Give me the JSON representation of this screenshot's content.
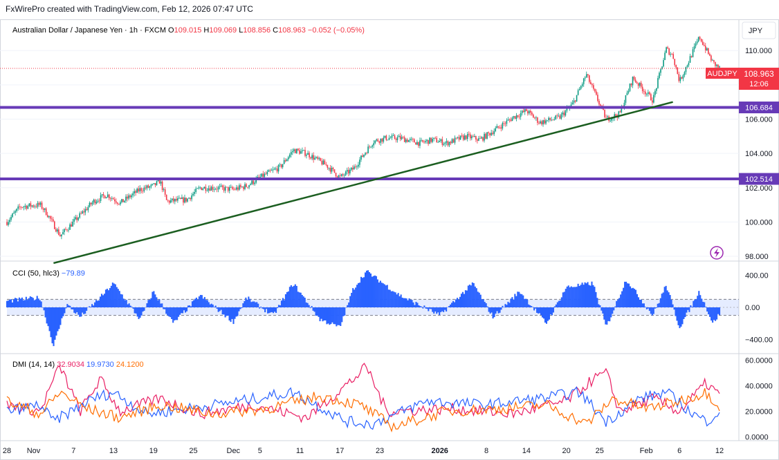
{
  "attribution": "FxWirePro created with TradingView.com, Feb 12, 2026 07:47 UTC",
  "colors": {
    "up": "#089981",
    "down": "#f23645",
    "level": "#673ab7",
    "trend": "#1b5e20",
    "cci": "#2962ff",
    "di_plus": "#2962ff",
    "di_minus": "#e91e63",
    "adx": "#ff6d00"
  },
  "chart_data": [
    {
      "type": "candlestick",
      "title": "Australian Dollar / Japanese Yen",
      "timeframe": "1h",
      "source": "FXCM",
      "ohlc": {
        "O": "109.015",
        "H": "109.069",
        "L": "108.856",
        "C": "108.963",
        "change": "−0.052 (−0.05%)"
      },
      "currency": "JPY",
      "symbol": "AUDJPY",
      "last_price": "108.963",
      "countdown": "12:06",
      "ylim": [
        97.8,
        111.5
      ],
      "y_ticks": [
        "110.000",
        "108.000",
        "106.000",
        "104.000",
        "102.000",
        "100.000",
        "98.000"
      ],
      "levels": [
        {
          "value": 106.684,
          "label": "106.684"
        },
        {
          "value": 102.514,
          "label": "102.514"
        }
      ],
      "trendline": {
        "start": {
          "date": "Nov 4",
          "value": 97.6
        },
        "end": {
          "date": "Feb 5",
          "value": 107.0
        }
      },
      "price_path": [
        [
          "Oct 28",
          100.0
        ],
        [
          "Oct 30",
          100.9
        ],
        [
          "Nov 2",
          101.0
        ],
        [
          "Nov 3",
          100.5
        ],
        [
          "Nov 5",
          99.2
        ],
        [
          "Nov 7",
          100.0
        ],
        [
          "Nov 10",
          101.2
        ],
        [
          "Nov 12",
          101.6
        ],
        [
          "Nov 14",
          101.1
        ],
        [
          "Nov 17",
          101.9
        ],
        [
          "Nov 19",
          102.1
        ],
        [
          "Nov 20",
          102.4
        ],
        [
          "Nov 21",
          101.2
        ],
        [
          "Nov 24",
          101.3
        ],
        [
          "Nov 26",
          102.0
        ],
        [
          "Nov 28",
          102.0
        ],
        [
          "Dec 1",
          101.9
        ],
        [
          "Dec 3",
          102.1
        ],
        [
          "Dec 5",
          102.6
        ],
        [
          "Dec 8",
          103.2
        ],
        [
          "Dec 10",
          104.2
        ],
        [
          "Dec 12",
          104.0
        ],
        [
          "Dec 15",
          103.3
        ],
        [
          "Dec 17",
          102.6
        ],
        [
          "Dec 19",
          103.1
        ],
        [
          "Dec 22",
          104.7
        ],
        [
          "Dec 24",
          104.9
        ],
        [
          "Dec 26",
          104.9
        ],
        [
          "Dec 29",
          104.6
        ],
        [
          "Dec 31",
          104.8
        ],
        [
          "Jan 2",
          104.6
        ],
        [
          "Jan 5",
          105.0
        ],
        [
          "Jan 7",
          104.8
        ],
        [
          "Jan 9",
          105.3
        ],
        [
          "Jan 12",
          106.1
        ],
        [
          "Jan 14",
          106.5
        ],
        [
          "Jan 16",
          105.8
        ],
        [
          "Jan 19",
          106.1
        ],
        [
          "Jan 21",
          106.9
        ],
        [
          "Jan 23",
          108.6
        ],
        [
          "Jan 26",
          106.0
        ],
        [
          "Jan 28",
          106.3
        ],
        [
          "Jan 30",
          108.4
        ],
        [
          "Feb 2",
          107.1
        ],
        [
          "Feb 4",
          110.1
        ],
        [
          "Feb 5",
          109.7
        ],
        [
          "Feb 6",
          108.2
        ],
        [
          "Feb 9",
          110.8
        ],
        [
          "Feb 11",
          109.3
        ],
        [
          "Feb 12",
          108.963
        ]
      ]
    },
    {
      "type": "area",
      "name": "CCI (50, hlc3)",
      "value_label": "−79.89",
      "ylim": [
        -560,
        560
      ],
      "y_ticks": [
        "400.00",
        "0.00",
        "−400.00"
      ],
      "bands": [
        100,
        -100
      ],
      "values": [
        [
          "Oct 28",
          80
        ],
        [
          "Nov 2",
          120
        ],
        [
          "Nov 4",
          -480
        ],
        [
          "Nov 6",
          40
        ],
        [
          "Nov 8",
          -120
        ],
        [
          "Nov 11",
          120
        ],
        [
          "Nov 13",
          300
        ],
        [
          "Nov 17",
          -150
        ],
        [
          "Nov 19",
          200
        ],
        [
          "Nov 22",
          -200
        ],
        [
          "Nov 26",
          150
        ],
        [
          "Dec 1",
          -180
        ],
        [
          "Dec 3",
          120
        ],
        [
          "Dec 7",
          -100
        ],
        [
          "Dec 10",
          300
        ],
        [
          "Dec 14",
          -150
        ],
        [
          "Dec 17",
          -250
        ],
        [
          "Dec 19",
          230
        ],
        [
          "Dec 21",
          450
        ],
        [
          "Dec 26",
          150
        ],
        [
          "Jan 1",
          -100
        ],
        [
          "Jan 6",
          300
        ],
        [
          "Jan 9",
          -120
        ],
        [
          "Jan 13",
          200
        ],
        [
          "Jan 17",
          -200
        ],
        [
          "Jan 20",
          250
        ],
        [
          "Jan 24",
          300
        ],
        [
          "Jan 26",
          -250
        ],
        [
          "Jan 29",
          350
        ],
        [
          "Feb 2",
          -100
        ],
        [
          "Feb 4",
          280
        ],
        [
          "Feb 6",
          -250
        ],
        [
          "Feb 9",
          200
        ],
        [
          "Feb 11",
          -200
        ],
        [
          "Feb 12",
          -79.89
        ]
      ]
    },
    {
      "type": "line",
      "name": "DMI (14, 14)",
      "values_labels": [
        "32.9034",
        "19.9730",
        "24.1200"
      ],
      "ylim": [
        -3,
        63
      ],
      "y_ticks": [
        "60.0000",
        "40.0000",
        "20.0000",
        "0.0000"
      ],
      "series": [
        {
          "role": "DI-",
          "color": "#e91e63",
          "value": 32.9034,
          "values": [
            [
              "Oct 28",
              25
            ],
            [
              "Nov 2",
              20
            ],
            [
              "Nov 4",
              45
            ],
            [
              "Nov 5",
              55
            ],
            [
              "Nov 8",
              20
            ],
            [
              "Nov 11",
              45
            ],
            [
              "Nov 14",
              20
            ],
            [
              "Nov 20",
              30
            ],
            [
              "Nov 26",
              18
            ],
            [
              "Dec 4",
              25
            ],
            [
              "Dec 12",
              15
            ],
            [
              "Dec 19",
              45
            ],
            [
              "Dec 21",
              55
            ],
            [
              "Dec 24",
              20
            ],
            [
              "Jan 3",
              22
            ],
            [
              "Jan 12",
              18
            ],
            [
              "Jan 20",
              28
            ],
            [
              "Jan 24",
              45
            ],
            [
              "Jan 26",
              50
            ],
            [
              "Jan 28",
              20
            ],
            [
              "Feb 2",
              30
            ],
            [
              "Feb 6",
              20
            ],
            [
              "Feb 10",
              42
            ],
            [
              "Feb 12",
              32.9034
            ]
          ]
        },
        {
          "role": "DI+",
          "color": "#2962ff",
          "value": 19.973,
          "values": [
            [
              "Oct 28",
              20
            ],
            [
              "Nov 2",
              25
            ],
            [
              "Nov 4",
              12
            ],
            [
              "Nov 6",
              18
            ],
            [
              "Nov 10",
              30
            ],
            [
              "Nov 13",
              35
            ],
            [
              "Nov 18",
              18
            ],
            [
              "Nov 24",
              22
            ],
            [
              "Dec 2",
              28
            ],
            [
              "Dec 10",
              35
            ],
            [
              "Dec 18",
              12
            ],
            [
              "Dec 22",
              10
            ],
            [
              "Dec 30",
              28
            ],
            [
              "Jan 8",
              25
            ],
            [
              "Jan 16",
              30
            ],
            [
              "Jan 22",
              35
            ],
            [
              "Jan 26",
              12
            ],
            [
              "Jan 31",
              30
            ],
            [
              "Feb 4",
              35
            ],
            [
              "Feb 8",
              18
            ],
            [
              "Feb 10",
              12
            ],
            [
              "Feb 12",
              19.973
            ]
          ]
        },
        {
          "role": "ADX",
          "color": "#ff6d00",
          "value": 24.12,
          "values": [
            [
              "Oct 28",
              28
            ],
            [
              "Nov 2",
              18
            ],
            [
              "Nov 5",
              35
            ],
            [
              "Nov 9",
              22
            ],
            [
              "Nov 14",
              15
            ],
            [
              "Nov 20",
              25
            ],
            [
              "Nov 28",
              18
            ],
            [
              "Dec 6",
              22
            ],
            [
              "Dec 14",
              32
            ],
            [
              "Dec 20",
              25
            ],
            [
              "Dec 25",
              8
            ],
            [
              "Jan 2",
              20
            ],
            [
              "Jan 10",
              22
            ],
            [
              "Jan 17",
              25
            ],
            [
              "Jan 23",
              10
            ],
            [
              "Jan 27",
              30
            ],
            [
              "Feb 1",
              22
            ],
            [
              "Feb 6",
              28
            ],
            [
              "Feb 10",
              35
            ],
            [
              "Feb 12",
              24.12
            ]
          ]
        }
      ]
    }
  ],
  "x_ticks": [
    {
      "date": "Oct 28",
      "label": "28"
    },
    {
      "date": "Nov 1",
      "label": "Nov"
    },
    {
      "date": "Nov 7",
      "label": "7"
    },
    {
      "date": "Nov 13",
      "label": "13"
    },
    {
      "date": "Nov 19",
      "label": "19"
    },
    {
      "date": "Nov 25",
      "label": "25"
    },
    {
      "date": "Dec 1",
      "label": "Dec"
    },
    {
      "date": "Dec 5",
      "label": "5"
    },
    {
      "date": "Dec 11",
      "label": "11"
    },
    {
      "date": "Dec 17",
      "label": "17"
    },
    {
      "date": "Dec 23",
      "label": "23"
    },
    {
      "date": "Jan 1",
      "label": "2026"
    },
    {
      "date": "Jan 8",
      "label": "8"
    },
    {
      "date": "Jan 14",
      "label": "14"
    },
    {
      "date": "Jan 20",
      "label": "20"
    },
    {
      "date": "Jan 25",
      "label": "25"
    },
    {
      "date": "Feb 1",
      "label": "Feb"
    },
    {
      "date": "Feb 6",
      "label": "6"
    },
    {
      "date": "Feb 12",
      "label": "12"
    }
  ],
  "x_range": [
    "Oct 28",
    "Feb 12"
  ],
  "icons": {
    "alert": "lightning-icon"
  }
}
